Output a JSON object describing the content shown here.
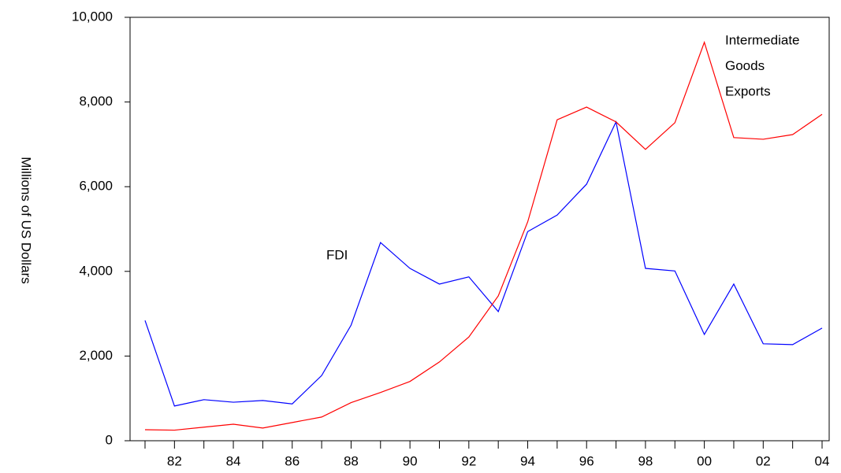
{
  "chart_data": {
    "type": "line",
    "y_label": "Millions of US Dollars",
    "categories": [
      null,
      "82",
      null,
      "84",
      null,
      "86",
      null,
      "88",
      null,
      "90",
      null,
      "92",
      null,
      "94",
      null,
      "96",
      null,
      "98",
      null,
      "00",
      null,
      "02",
      null,
      "04"
    ],
    "series": [
      {
        "color": "#0000ff",
        "values": [
          2840,
          820,
          970,
          910,
          950,
          870,
          1540,
          2730,
          4680,
          4070,
          3700,
          3870,
          3050,
          4940,
          5330,
          6060,
          7530,
          4070,
          4010,
          2510,
          3700,
          2290,
          2270,
          2660
        ]
      },
      {
        "color": "#ff0000",
        "values": [
          260,
          250,
          320,
          390,
          300,
          430,
          560,
          900,
          1140,
          1400,
          1860,
          2450,
          3420,
          5170,
          7580,
          7880,
          7530,
          6880,
          7510,
          9410,
          7160,
          7120,
          7230,
          7710
        ]
      }
    ],
    "annotations": [
      {
        "lines": [
          "FDI"
        ]
      },
      {
        "lines": [
          "Intermediate",
          "Goods",
          "Exports"
        ]
      }
    ],
    "ylim": [
      0,
      10000
    ],
    "yticks": [
      0,
      {
        "value": 2000,
        "label": "2,000"
      },
      {
        "value": 4000,
        "label": "4,000"
      },
      {
        "value": 6000,
        "label": "6,000"
      },
      {
        "value": 8000,
        "label": "8,000"
      },
      {
        "value": 10000,
        "label": "10,000"
      }
    ],
    "grid": false
  }
}
